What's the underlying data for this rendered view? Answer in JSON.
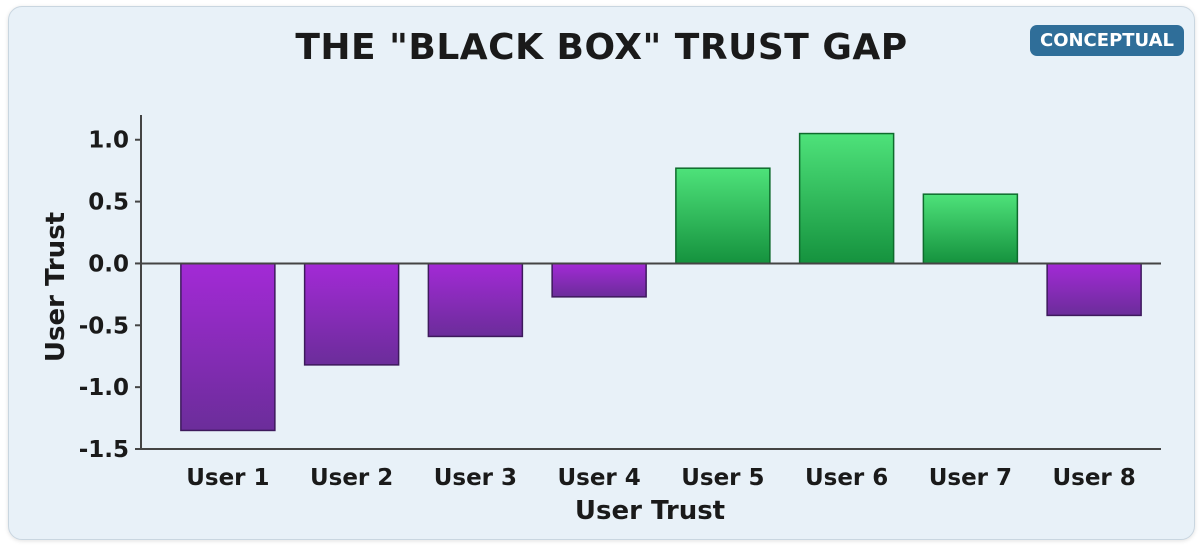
{
  "badge": "CONCEPTUAL",
  "colors": {
    "negative_top": "#a32ad6",
    "negative_bottom": "#6b2d9a",
    "positive_top": "#4ee27a",
    "positive_bottom": "#15923e",
    "card_background": "#e8f1f8",
    "badge_background": "#2f6e99"
  },
  "chart_data": {
    "type": "bar",
    "title": "THE \"BLACK BOX\" TRUST GAP",
    "xlabel": "User Trust",
    "ylabel": "User Trust",
    "categories": [
      "User 1",
      "User 2",
      "User 3",
      "User 4",
      "User 5",
      "User 6",
      "User 7",
      "User 8"
    ],
    "values": [
      -1.35,
      -0.82,
      -0.59,
      -0.27,
      0.77,
      1.05,
      0.56,
      -0.42
    ],
    "ylim": [
      -1.5,
      1.2
    ],
    "yticks": [
      "1.0",
      "0.5",
      "0.0",
      "-0.5",
      "-1.0",
      "-1.5"
    ],
    "ytick_values": [
      1.0,
      0.5,
      0.0,
      -0.5,
      -1.0,
      -1.5
    ],
    "grid": false,
    "legend": "none"
  }
}
